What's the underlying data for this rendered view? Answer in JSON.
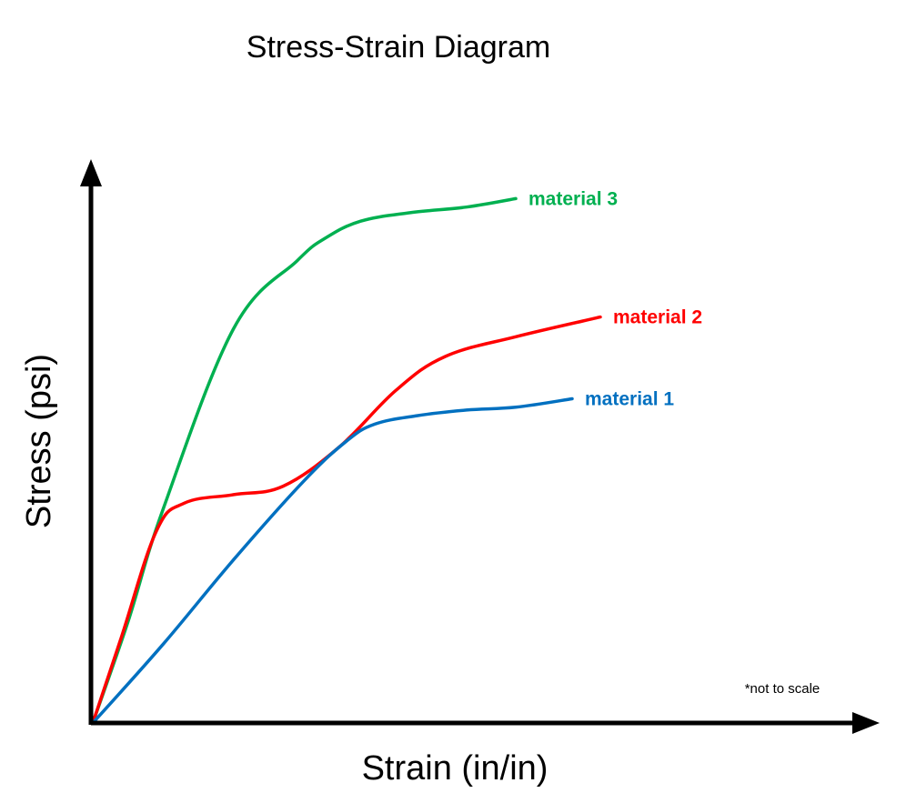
{
  "chart_data": {
    "type": "line",
    "title": "Stress-Strain Diagram",
    "xlabel": "Strain (in/in)",
    "ylabel": "Stress (psi)",
    "note": "*not to scale",
    "xlim": [
      0,
      10
    ],
    "ylim": [
      0,
      10
    ],
    "grid": false,
    "series": [
      {
        "name": "material 3",
        "color": "#00b050",
        "x": [
          0,
          0.5,
          1.0,
          2.0,
          2.9,
          3.3,
          3.8,
          4.5,
          5.3,
          6.0
        ],
        "y": [
          0,
          1.8,
          3.8,
          7.0,
          8.2,
          8.6,
          8.9,
          9.05,
          9.15,
          9.3
        ]
      },
      {
        "name": "material 2",
        "color": "#ff0000",
        "x": [
          0,
          0.4,
          0.9,
          1.3,
          2.0,
          2.7,
          3.5,
          4.3,
          5.0,
          6.0,
          7.2
        ],
        "y": [
          0,
          1.5,
          3.4,
          3.9,
          4.05,
          4.2,
          4.9,
          5.9,
          6.5,
          6.85,
          7.2
        ]
      },
      {
        "name": "material 1",
        "color": "#0070c0",
        "x": [
          0,
          1.0,
          2.0,
          3.0,
          3.6,
          4.0,
          4.6,
          5.3,
          6.0,
          6.8
        ],
        "y": [
          0,
          1.4,
          2.9,
          4.3,
          5.0,
          5.3,
          5.45,
          5.55,
          5.6,
          5.75
        ]
      }
    ]
  }
}
